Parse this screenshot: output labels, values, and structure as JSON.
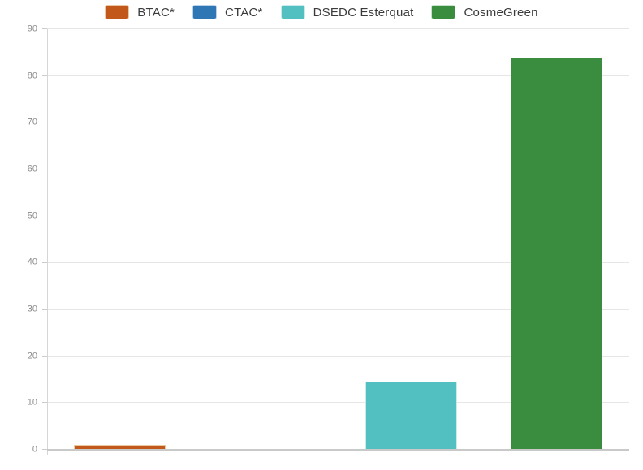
{
  "chart_data": {
    "type": "bar",
    "title": "",
    "xlabel": "",
    "ylabel": "",
    "categories": [
      "BTAC*",
      "CTAC*",
      "DSEDC Esterquat",
      "CosmeGreen"
    ],
    "values": [
      1.1,
      0,
      14.5,
      84
    ],
    "colors": [
      "#c2591b",
      "#2f76b5",
      "#52bfc0",
      "#3a8d3f"
    ],
    "bar_border_colors": [
      "#eac8a4",
      "#b9d2ea",
      "#c9ebeb",
      "#c9e3ca"
    ],
    "ylim": [
      0,
      90
    ],
    "ytick_step": 10,
    "ytick_labels": [
      "0",
      "10",
      "20",
      "30",
      "40",
      "50",
      "60",
      "70",
      "80",
      "90"
    ],
    "grid": true,
    "legend_position": "top",
    "gridline_color": "#e6e6e6",
    "baseline_color": "#c9c9c9",
    "axis_line_color": "#d6d6d6",
    "tick_label_color": "#8a8a8a",
    "legend_text_color": "#3b3b3b"
  }
}
